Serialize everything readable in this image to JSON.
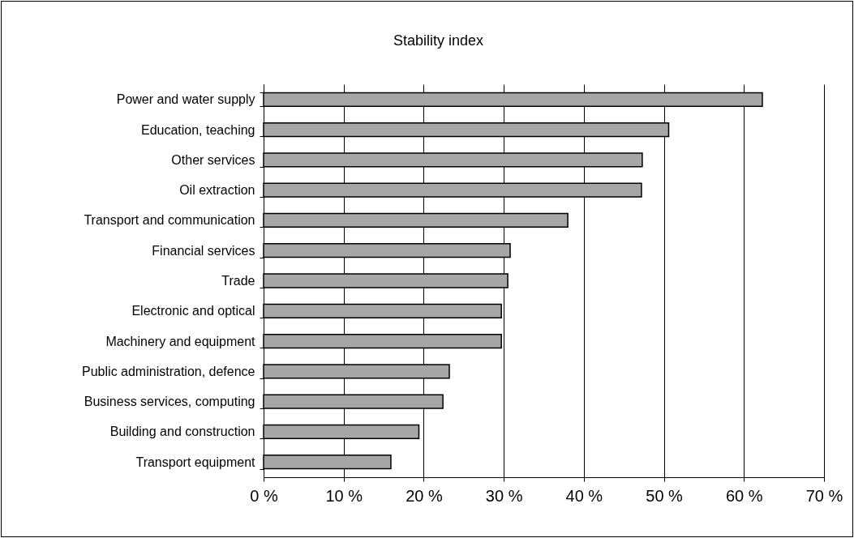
{
  "chart_data": {
    "type": "bar",
    "orientation": "horizontal",
    "title": "Stability index",
    "categories": [
      "Power and water supply",
      "Education, teaching",
      "Other services",
      "Oil extraction",
      "Transport and communication",
      "Financial services",
      "Trade",
      "Electronic and optical",
      "Machinery and equipment",
      "Public administration, defence",
      "Business services, computing",
      "Building and construction",
      "Transport equipment"
    ],
    "values": [
      62.3,
      50.6,
      47.3,
      47.2,
      38.0,
      30.8,
      30.5,
      29.7,
      29.7,
      23.2,
      22.4,
      19.4,
      15.9
    ],
    "color": "#a6a6a6",
    "xlim": [
      0,
      70
    ],
    "xticks": [
      {
        "value": 0,
        "label": "0 %"
      },
      {
        "value": 10,
        "label": "10 %"
      },
      {
        "value": 20,
        "label": "20 %"
      },
      {
        "value": 30,
        "label": "30 %"
      },
      {
        "value": 40,
        "label": "40 %"
      },
      {
        "value": 50,
        "label": "50 %"
      },
      {
        "value": 60,
        "label": "60 %"
      },
      {
        "value": 70,
        "label": "70 %"
      }
    ],
    "grid": "x"
  }
}
